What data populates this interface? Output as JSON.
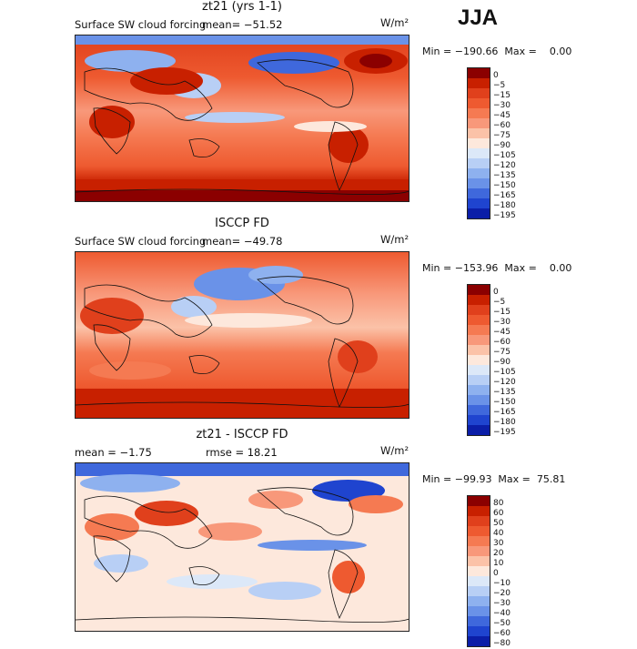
{
  "season": "JJA",
  "panels": [
    {
      "title": "zt21 (yrs 1-1)",
      "subtitle_left": "Surface SW cloud forcing",
      "subtitle_stat": "mean=  −51.52",
      "unit": "W/m²",
      "min_max": "Min = −190.66  Max =    0.00",
      "colorbar_labels": [
        "0",
        "−5",
        "−15",
        "−30",
        "−45",
        "−60",
        "−75",
        "−90",
        "−105",
        "−120",
        "−135",
        "−150",
        "−165",
        "−180",
        "−195"
      ],
      "colorbar_colors": [
        "#8b0000",
        "#c82000",
        "#e0401c",
        "#ee5a30",
        "#f57a52",
        "#f8987a",
        "#fbc2a8",
        "#fde8dc",
        "#dce8f8",
        "#b8cff5",
        "#8eb1ef",
        "#6a92e8",
        "#3f68dc",
        "#1f44cf",
        "#0b1ea8"
      ]
    },
    {
      "title": "ISCCP FD",
      "subtitle_left": "Surface SW cloud forcing",
      "subtitle_stat": "mean=  −49.78",
      "unit": "W/m²",
      "min_max": "Min = −153.96  Max =    0.00",
      "colorbar_labels": [
        "0",
        "−5",
        "−15",
        "−30",
        "−45",
        "−60",
        "−75",
        "−90",
        "−105",
        "−120",
        "−135",
        "−150",
        "−165",
        "−180",
        "−195"
      ],
      "colorbar_colors": [
        "#8b0000",
        "#c82000",
        "#e0401c",
        "#ee5a30",
        "#f57a52",
        "#f8987a",
        "#fbc2a8",
        "#fde8dc",
        "#dce8f8",
        "#b8cff5",
        "#8eb1ef",
        "#6a92e8",
        "#3f68dc",
        "#1f44cf",
        "#0b1ea8"
      ]
    },
    {
      "title": "zt21 - ISCCP FD",
      "subtitle_left": "mean =   −1.75",
      "subtitle_stat": "rmse =   18.21",
      "unit": "W/m²",
      "min_max": "Min = −99.93  Max =  75.81",
      "colorbar_labels": [
        "80",
        "60",
        "50",
        "40",
        "30",
        "20",
        "10",
        "0",
        "−10",
        "−20",
        "−30",
        "−40",
        "−50",
        "−60",
        "−80"
      ],
      "colorbar_colors": [
        "#8b0000",
        "#c82000",
        "#e0401c",
        "#ee5a30",
        "#f57a52",
        "#f8987a",
        "#fbc2a8",
        "#fde8dc",
        "#dce8f8",
        "#b8cff5",
        "#8eb1ef",
        "#6a92e8",
        "#3f68dc",
        "#1f44cf",
        "#0b1ea8"
      ]
    }
  ]
}
